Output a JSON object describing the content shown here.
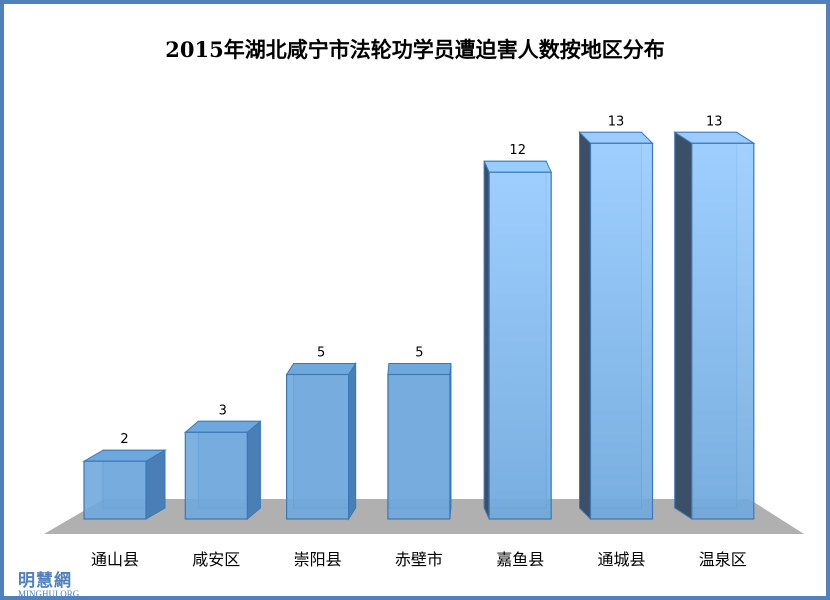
{
  "chart_data": {
    "type": "bar",
    "title": "2015年湖北咸宁市法轮功学员遭迫害人数按地区分布",
    "categories": [
      "通山县",
      "咸安区",
      "崇阳县",
      "赤壁市",
      "嘉鱼县",
      "通城县",
      "温泉区"
    ],
    "values": [
      2,
      3,
      5,
      5,
      12,
      13,
      13
    ],
    "xlabel": "",
    "ylabel": "",
    "ylim": [
      0,
      13
    ],
    "grid": false,
    "colors": {
      "light": "#99ccff",
      "dark": "#6fa8dc",
      "edge": "#3a78b8",
      "shadow": "#3b5068",
      "floor": "#b0b0b0",
      "frame": "#4f81bd"
    }
  },
  "logo": {
    "cn": "明慧網",
    "en": "MINGHUI.ORG"
  }
}
